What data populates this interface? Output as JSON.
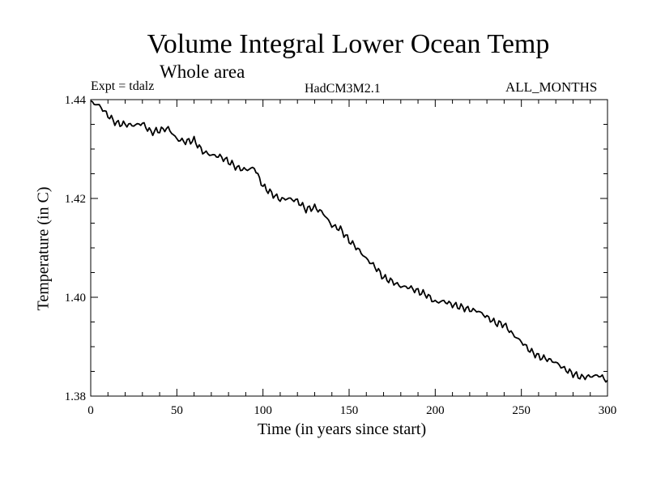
{
  "chart_data": {
    "type": "line",
    "title": "Volume Integral Lower Ocean Temp",
    "subtitle": "Whole area",
    "experiment": "Expt = tdalz",
    "model": "HadCM3M2.1",
    "period": "ALL_MONTHS",
    "xlabel": "Time (in years since start)",
    "ylabel": "Temperature (in C)",
    "xlim": [
      0,
      300
    ],
    "ylim": [
      1.38,
      1.44
    ],
    "xticks": [
      0,
      50,
      100,
      150,
      200,
      250,
      300
    ],
    "xtick_labels": [
      "0",
      "50",
      "100",
      "150",
      "200",
      "250",
      "300"
    ],
    "yticks": [
      1.38,
      1.4,
      1.42,
      1.44
    ],
    "ytick_labels": [
      "1.38",
      "1.40",
      "1.42",
      "1.44"
    ],
    "grid": false,
    "series": [
      {
        "name": "Volume Integral Lower Ocean Temp",
        "color": "#000000",
        "x": [
          0,
          5,
          10,
          15,
          20,
          25,
          30,
          35,
          40,
          45,
          50,
          55,
          60,
          65,
          70,
          75,
          80,
          85,
          90,
          95,
          100,
          105,
          110,
          115,
          120,
          125,
          130,
          135,
          140,
          145,
          150,
          155,
          160,
          165,
          170,
          175,
          180,
          185,
          190,
          195,
          200,
          205,
          210,
          215,
          220,
          225,
          230,
          235,
          240,
          245,
          250,
          255,
          260,
          265,
          270,
          275,
          280,
          285,
          290,
          295,
          300
        ],
        "values": [
          1.4395,
          1.4388,
          1.4368,
          1.4352,
          1.435,
          1.4348,
          1.4352,
          1.4334,
          1.4338,
          1.4342,
          1.432,
          1.4315,
          1.4318,
          1.4295,
          1.4288,
          1.4285,
          1.4275,
          1.4262,
          1.4258,
          1.4262,
          1.4225,
          1.421,
          1.4198,
          1.42,
          1.4195,
          1.4178,
          1.4182,
          1.417,
          1.4145,
          1.4138,
          1.4115,
          1.4098,
          1.4078,
          1.4062,
          1.404,
          1.4032,
          1.4022,
          1.402,
          1.4012,
          1.4005,
          1.399,
          1.3992,
          1.3985,
          1.398,
          1.3975,
          1.3972,
          1.396,
          1.3948,
          1.3945,
          1.3925,
          1.391,
          1.3892,
          1.388,
          1.3875,
          1.3868,
          1.3855,
          1.3845,
          1.3838,
          1.384,
          1.3842,
          1.3832
        ]
      }
    ]
  }
}
